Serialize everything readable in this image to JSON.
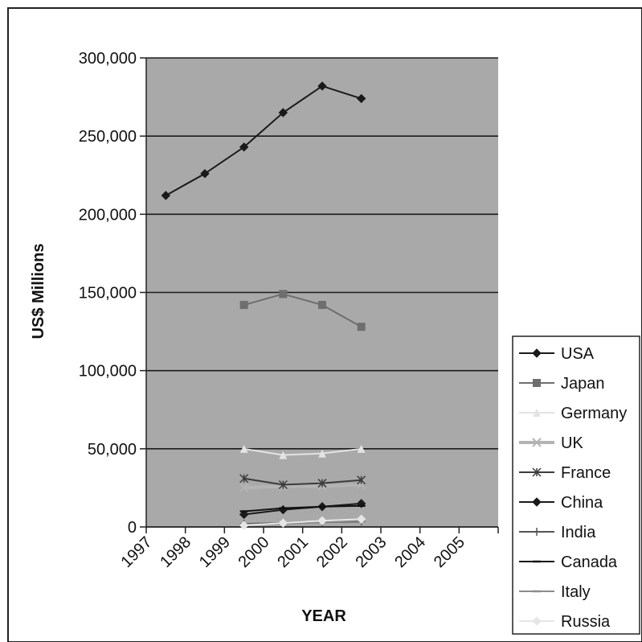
{
  "chart_data": {
    "type": "line",
    "title": "",
    "xlabel": "YEAR",
    "ylabel": "US$ Millions",
    "ylim": [
      0,
      300000
    ],
    "yticks": [
      0,
      50000,
      100000,
      150000,
      200000,
      250000,
      300000
    ],
    "ytick_labels": [
      "0",
      "50,000",
      "100,000",
      "150,000",
      "200,000",
      "250,000",
      "300,000"
    ],
    "categories": [
      "1997",
      "1998",
      "1999",
      "2000",
      "2001",
      "2002",
      "2003",
      "2004",
      "2005"
    ],
    "grid": "horizontal major gridlines",
    "legend_position": "right",
    "series": [
      {
        "name": "USA",
        "color": "#1a1a1a",
        "marker": "diamond",
        "values": [
          212000,
          226000,
          243000,
          265000,
          282000,
          274000,
          null,
          null,
          null
        ]
      },
      {
        "name": "Japan",
        "color": "#6e6e6e",
        "marker": "square",
        "values": [
          null,
          null,
          142000,
          149000,
          142000,
          128000,
          null,
          null,
          null
        ]
      },
      {
        "name": "Germany",
        "color": "#e3e3e3",
        "marker": "triangle",
        "values": [
          null,
          null,
          50000,
          46000,
          47000,
          50000,
          null,
          null,
          null
        ]
      },
      {
        "name": "UK",
        "color": "#b4b4b4",
        "marker": "x",
        "values": [
          null,
          null,
          25000,
          26000,
          26000,
          27000,
          null,
          null,
          null
        ]
      },
      {
        "name": "France",
        "color": "#3c3c3c",
        "marker": "star",
        "values": [
          null,
          null,
          31000,
          27000,
          28000,
          30000,
          null,
          null,
          null
        ]
      },
      {
        "name": "China",
        "color": "#1a1a1a",
        "marker": "diamond",
        "values": [
          null,
          null,
          8000,
          11000,
          13000,
          15000,
          null,
          null,
          null
        ]
      },
      {
        "name": "India",
        "color": "#555555",
        "marker": "plus",
        "values": [
          null,
          null,
          2000,
          2500,
          3000,
          3500,
          null,
          null,
          null
        ]
      },
      {
        "name": "Canada",
        "color": "#111111",
        "marker": "dash",
        "values": [
          null,
          null,
          10000,
          12000,
          13000,
          13500,
          null,
          null,
          null
        ]
      },
      {
        "name": "Italy",
        "color": "#8c8c8c",
        "marker": "dash",
        "values": [
          null,
          null,
          1500,
          2000,
          3000,
          4000,
          null,
          null,
          null
        ]
      },
      {
        "name": "Russia",
        "color": "#e6e6e6",
        "marker": "diamond",
        "values": [
          null,
          null,
          1000,
          2500,
          4000,
          5000,
          null,
          null,
          null
        ]
      }
    ]
  },
  "colors": {
    "plot_background": "#a9a9a9",
    "gridline": "#1c1c1c",
    "frame_border": "#222222",
    "legend_background": "#ffffff"
  }
}
